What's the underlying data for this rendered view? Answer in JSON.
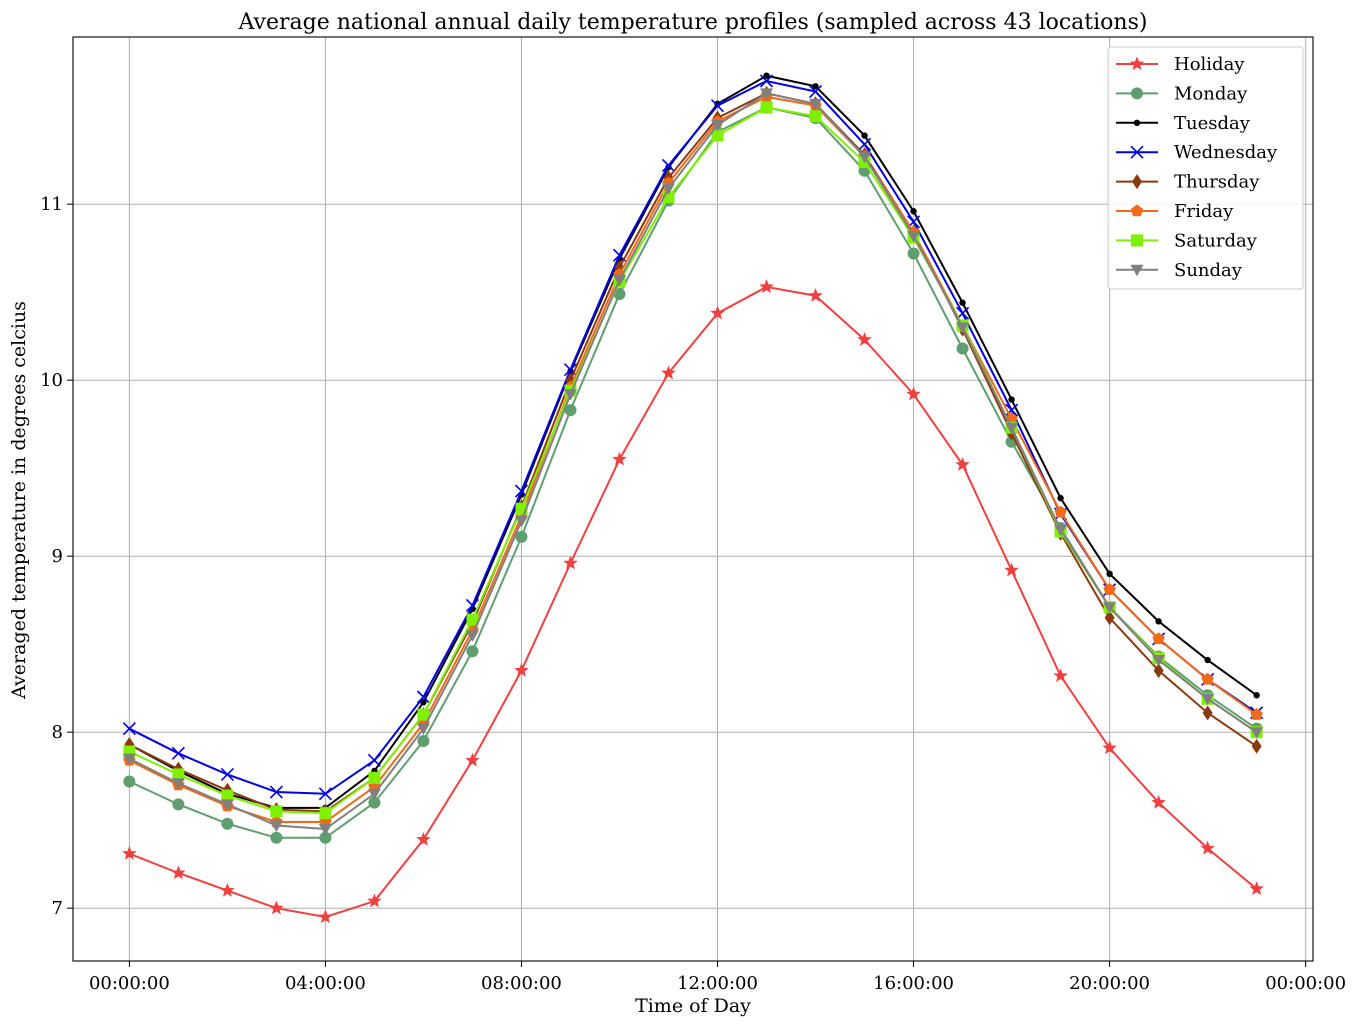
{
  "chart_data": {
    "type": "line",
    "title": "Average national annual daily temperature profiles (sampled across 43 locations)",
    "xlabel": "Time of Day",
    "ylabel": "Averaged temperature in degrees celcius",
    "x_unit": "hours",
    "xlim": [
      -1.15,
      24.15
    ],
    "ylim": [
      6.7,
      11.95
    ],
    "x_ticks": [
      {
        "value": 0,
        "label": "00:00:00"
      },
      {
        "value": 4,
        "label": "04:00:00"
      },
      {
        "value": 8,
        "label": "08:00:00"
      },
      {
        "value": 12,
        "label": "12:00:00"
      },
      {
        "value": 16,
        "label": "16:00:00"
      },
      {
        "value": 20,
        "label": "20:00:00"
      },
      {
        "value": 24,
        "label": "00:00:00"
      }
    ],
    "y_ticks": [
      {
        "value": 7,
        "label": "7"
      },
      {
        "value": 8,
        "label": "8"
      },
      {
        "value": 9,
        "label": "9"
      },
      {
        "value": 10,
        "label": "10"
      },
      {
        "value": 11,
        "label": "11"
      }
    ],
    "grid": true,
    "legend_position": "top-right",
    "x": [
      0,
      1,
      2,
      3,
      4,
      5,
      6,
      7,
      8,
      9,
      10,
      11,
      12,
      13,
      14,
      15,
      16,
      17,
      18,
      19,
      20,
      21,
      22,
      23
    ],
    "series": [
      {
        "name": "Holiday",
        "color": "#f04040",
        "marker": "star",
        "values": [
          7.31,
          7.2,
          7.1,
          7.0,
          6.95,
          7.04,
          7.39,
          7.84,
          8.35,
          8.96,
          9.55,
          10.04,
          10.38,
          10.53,
          10.48,
          10.23,
          9.92,
          9.52,
          8.92,
          8.32,
          7.91,
          7.6,
          7.34,
          7.11
        ]
      },
      {
        "name": "Monday",
        "color": "#5f9e6e",
        "marker": "circle",
        "values": [
          7.72,
          7.59,
          7.48,
          7.4,
          7.4,
          7.6,
          7.95,
          8.46,
          9.11,
          9.83,
          10.49,
          11.02,
          11.41,
          11.55,
          11.49,
          11.19,
          10.72,
          10.18,
          9.65,
          9.16,
          8.71,
          8.43,
          8.21,
          8.02
        ]
      },
      {
        "name": "Tuesday",
        "color": "#000000",
        "marker": "dot",
        "values": [
          7.93,
          7.78,
          7.65,
          7.57,
          7.57,
          7.78,
          8.17,
          8.7,
          9.35,
          10.05,
          10.69,
          11.21,
          11.57,
          11.73,
          11.67,
          11.39,
          10.96,
          10.44,
          9.89,
          9.33,
          8.9,
          8.63,
          8.41,
          8.21
        ]
      },
      {
        "name": "Wednesday",
        "color": "#0000e0",
        "marker": "x",
        "values": [
          8.02,
          7.88,
          7.76,
          7.66,
          7.65,
          7.84,
          8.2,
          8.72,
          9.37,
          10.06,
          10.71,
          11.22,
          11.56,
          11.7,
          11.64,
          11.34,
          10.9,
          10.38,
          9.83,
          9.24,
          8.81,
          8.53,
          8.3,
          8.11
        ]
      },
      {
        "name": "Thursday",
        "color": "#8b3a0f",
        "marker": "diamond",
        "values": [
          7.93,
          7.79,
          7.67,
          7.56,
          7.55,
          7.74,
          8.1,
          8.62,
          9.28,
          10.0,
          10.64,
          11.15,
          11.49,
          11.63,
          11.57,
          11.28,
          10.84,
          10.29,
          9.7,
          9.13,
          8.65,
          8.35,
          8.11,
          7.92
        ]
      },
      {
        "name": "Friday",
        "color": "#f06a1a",
        "marker": "pentagon",
        "values": [
          7.84,
          7.7,
          7.58,
          7.49,
          7.49,
          7.69,
          8.05,
          8.58,
          9.23,
          9.96,
          10.6,
          11.12,
          11.47,
          11.61,
          11.56,
          11.27,
          10.84,
          10.31,
          9.78,
          9.25,
          8.81,
          8.53,
          8.3,
          8.1
        ]
      },
      {
        "name": "Saturday",
        "color": "#7ff000",
        "marker": "square",
        "values": [
          7.89,
          7.76,
          7.64,
          7.55,
          7.54,
          7.74,
          8.1,
          8.64,
          9.27,
          9.94,
          10.56,
          11.04,
          11.39,
          11.55,
          11.5,
          11.24,
          10.81,
          10.31,
          9.73,
          9.14,
          8.71,
          8.42,
          8.19,
          8.0
        ]
      },
      {
        "name": "Sunday",
        "color": "#808080",
        "marker": "triangle-down",
        "values": [
          7.85,
          7.71,
          7.59,
          7.47,
          7.45,
          7.65,
          8.02,
          8.55,
          9.2,
          9.92,
          10.57,
          11.09,
          11.45,
          11.63,
          11.57,
          11.27,
          10.82,
          10.3,
          9.73,
          9.15,
          8.71,
          8.41,
          8.19,
          8.0
        ]
      }
    ]
  }
}
